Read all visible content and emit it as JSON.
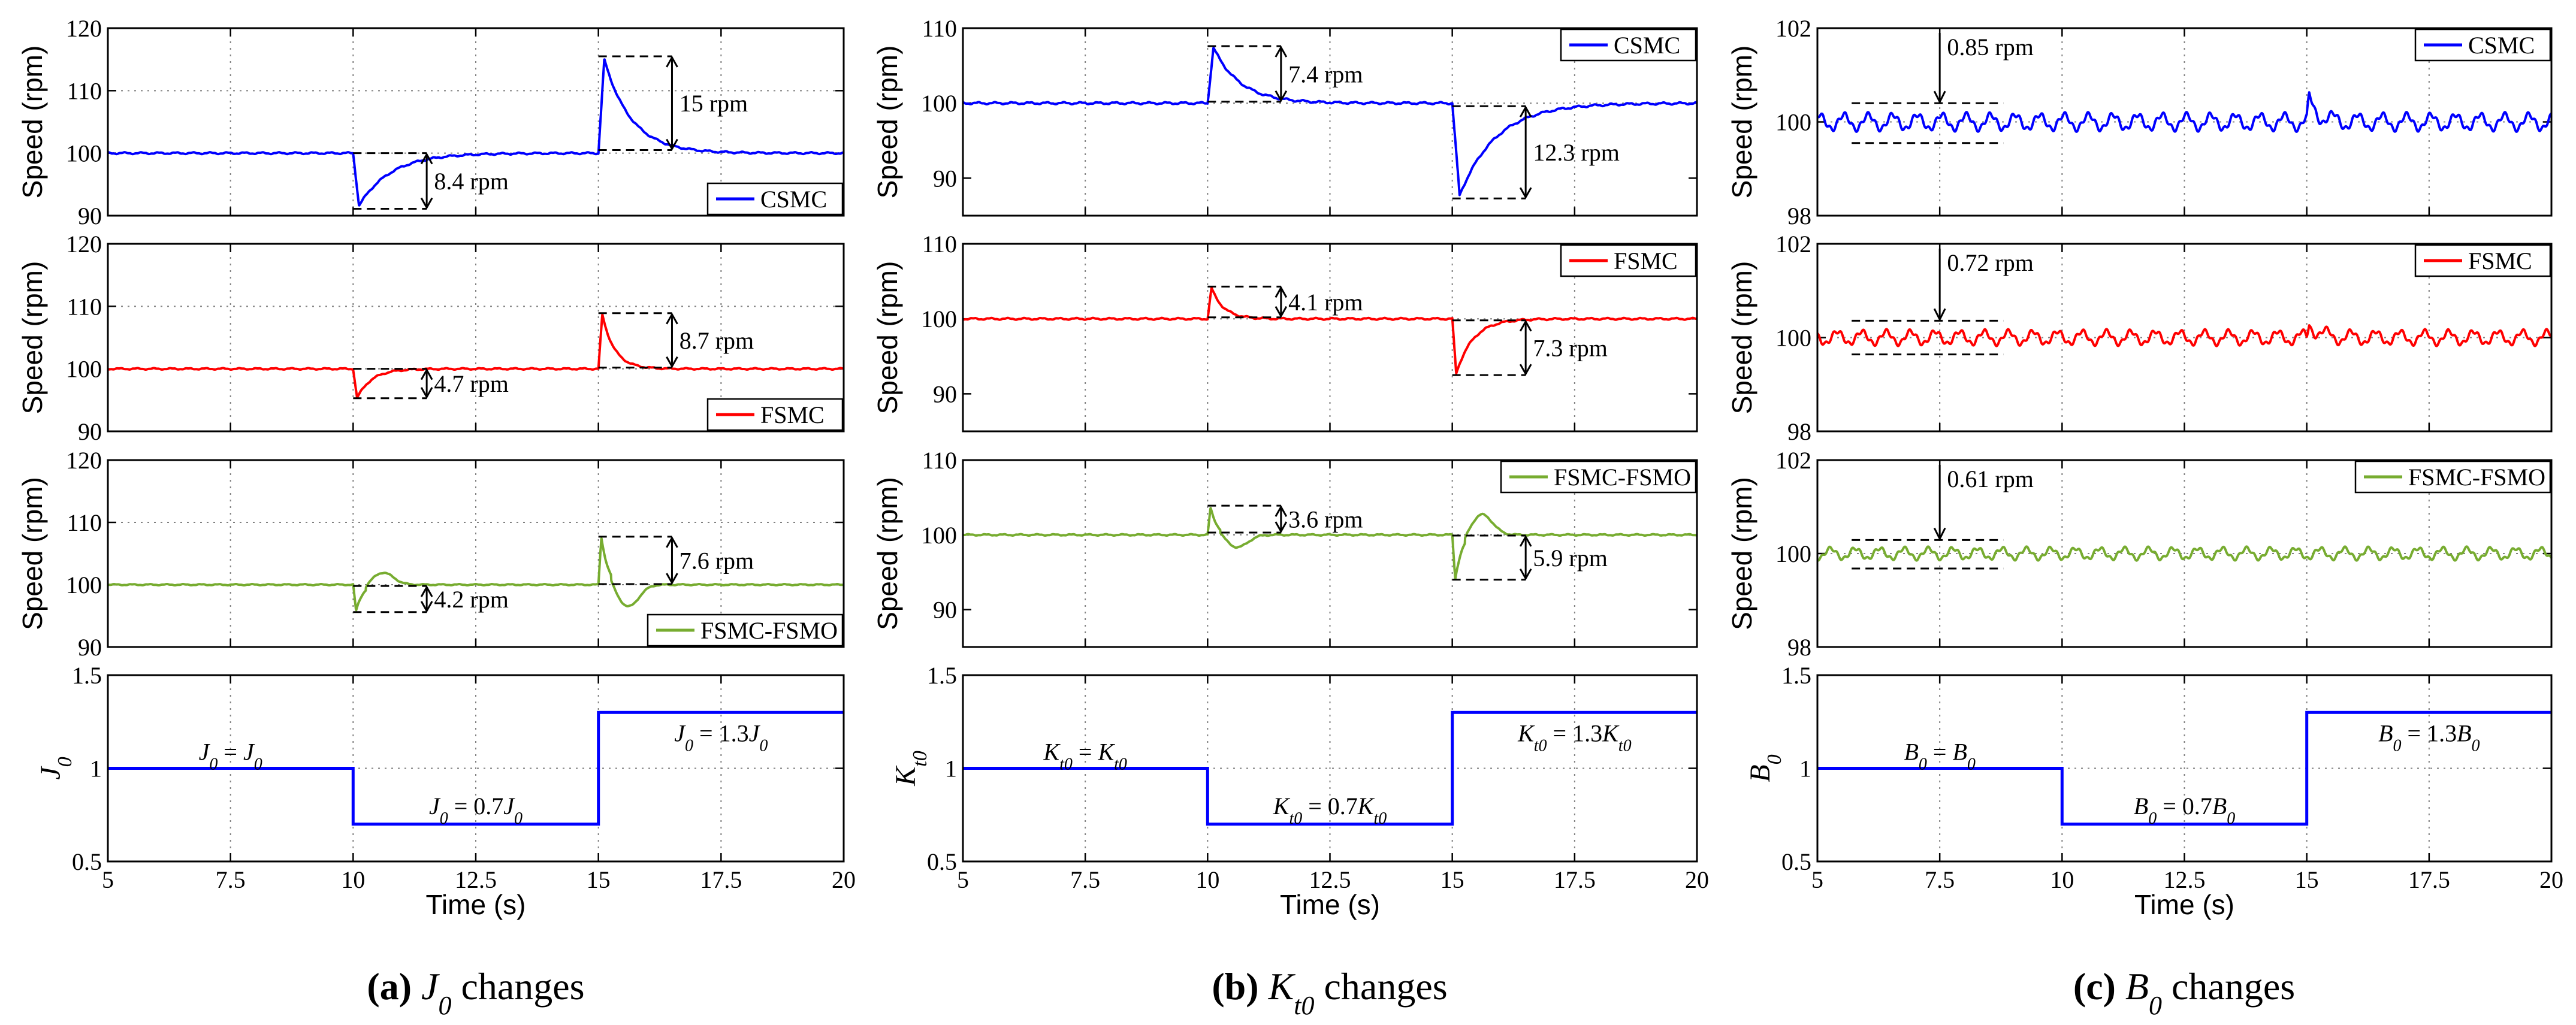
{
  "figure": {
    "captions": [
      {
        "letter": "(a)",
        "symbol": "J0",
        "suffix": " changes"
      },
      {
        "letter": "(b)",
        "symbol": "Kt0",
        "suffix": " changes"
      },
      {
        "letter": "(c)",
        "symbol": "B0",
        "suffix": " changes"
      }
    ],
    "colors": {
      "CSMC": "#0000ff",
      "FSMC": "#ff0000",
      "FSMC-FSMO": "#77ac30"
    }
  },
  "chart_data": [
    {
      "type": "line",
      "column": "a",
      "row": 0,
      "controller": "CSMC",
      "legend_pos": "bottom-right",
      "ylabel": "Speed  (rpm)",
      "xlim": [
        5,
        20
      ],
      "ylim": [
        90,
        120
      ],
      "yticks": [
        90,
        100,
        110,
        120
      ],
      "xticks": [
        5,
        7.5,
        10,
        12.5,
        15,
        17.5,
        20
      ],
      "xticklabels_shown": false,
      "grid": true,
      "series": [
        {
          "name": "CSMC",
          "baseline": 100,
          "ripple": 0.3,
          "events": [
            {
              "t": 10,
              "peak": -8.4,
              "tau": 0.65,
              "ramp": 0.12
            },
            {
              "t": 15,
              "peak": 15,
              "tau": 0.55,
              "ramp": 0.12
            }
          ]
        }
      ],
      "annotations": [
        {
          "text": "8.4 rpm",
          "x_line": [
            10,
            11.5
          ],
          "y_low": 91.1,
          "y_high": 100,
          "x_arrow": 11.5,
          "label_at": 11.65
        },
        {
          "text": "15 rpm",
          "x_line": [
            15,
            16.5
          ],
          "y_low": 100.5,
          "y_high": 115.5,
          "x_arrow": 16.5,
          "label_at": 16.65
        }
      ]
    },
    {
      "type": "line",
      "column": "a",
      "row": 1,
      "controller": "FSMC",
      "legend_pos": "bottom-right",
      "ylabel": "Speed  (rpm)",
      "xlim": [
        5,
        20
      ],
      "ylim": [
        90,
        120
      ],
      "yticks": [
        90,
        100,
        110,
        120
      ],
      "xticks": [
        5,
        7.5,
        10,
        12.5,
        15,
        17.5,
        20
      ],
      "xticklabels_shown": false,
      "grid": true,
      "series": [
        {
          "name": "FSMC",
          "baseline": 100,
          "ripple": 0.25,
          "events": [
            {
              "t": 10,
              "peak": -4.7,
              "tau": 0.3,
              "ramp": 0.08
            },
            {
              "t": 15,
              "peak": 8.7,
              "tau": 0.25,
              "ramp": 0.08
            }
          ]
        }
      ],
      "annotations": [
        {
          "text": "4.7 rpm",
          "x_line": [
            10,
            11.5
          ],
          "y_low": 95.3,
          "y_high": 100,
          "x_arrow": 11.5,
          "label_at": 11.65
        },
        {
          "text": "8.7 rpm",
          "x_line": [
            15,
            16.5
          ],
          "y_low": 100.2,
          "y_high": 108.9,
          "x_arrow": 16.5,
          "label_at": 16.65
        }
      ]
    },
    {
      "type": "line",
      "column": "a",
      "row": 2,
      "controller": "FSMC-FSMO",
      "legend_pos": "bottom-right",
      "ylabel": "Speed  (rpm)",
      "xlim": [
        5,
        20
      ],
      "ylim": [
        90,
        120
      ],
      "yticks": [
        90,
        100,
        110,
        120
      ],
      "xticks": [
        5,
        7.5,
        10,
        12.5,
        15,
        17.5,
        20
      ],
      "xticklabels_shown": false,
      "grid": true,
      "series": [
        {
          "name": "FSMC-FSMO",
          "baseline": 100,
          "ripple": 0.2,
          "events": [
            {
              "t": 10,
              "peak": -4.2,
              "tau": 0.15,
              "ramp": 0.06,
              "rebound": 0.45
            },
            {
              "t": 15,
              "peak": 7.6,
              "tau": 0.15,
              "ramp": 0.06,
              "rebound": 0.45
            }
          ]
        }
      ],
      "annotations": [
        {
          "text": "4.2 rpm",
          "x_line": [
            10,
            11.5
          ],
          "y_low": 95.6,
          "y_high": 99.8,
          "x_arrow": 11.5,
          "label_at": 11.65
        },
        {
          "text": "7.6 rpm",
          "x_line": [
            15,
            16.5
          ],
          "y_low": 100.1,
          "y_high": 107.7,
          "x_arrow": 16.5,
          "label_at": 16.65
        }
      ]
    },
    {
      "type": "line",
      "column": "a",
      "row": 3,
      "ylabel": "J0",
      "xlabel": "Time (s)",
      "xlim": [
        5,
        20
      ],
      "ylim": [
        0.5,
        1.5
      ],
      "yticks": [
        0.5,
        1,
        1.5
      ],
      "xticks": [
        5,
        7.5,
        10,
        12.5,
        15,
        17.5,
        20
      ],
      "xticklabels": [
        "5",
        "7.5",
        "10",
        "12.5",
        "15",
        "17.5",
        "20"
      ],
      "grid": true,
      "series": [
        {
          "name": "J0",
          "steps": [
            [
              5,
              1
            ],
            [
              10,
              1
            ],
            [
              10,
              0.7
            ],
            [
              15,
              0.7
            ],
            [
              15,
              1.3
            ],
            [
              20,
              1.3
            ]
          ]
        }
      ],
      "step_labels": [
        {
          "text": "J0 = J0",
          "x": 7.5,
          "y": 1.07
        },
        {
          "text": "J0 = 0.7J0",
          "x": 12.5,
          "y": 0.78
        },
        {
          "text": "J0 = 1.3J0",
          "x": 17.5,
          "y": 1.17
        }
      ]
    },
    {
      "type": "line",
      "column": "b",
      "row": 0,
      "controller": "CSMC",
      "legend_pos": "top-right",
      "ylabel": "Speed  (rpm)",
      "xlim": [
        5,
        20
      ],
      "ylim": [
        85,
        110
      ],
      "yticks": [
        90,
        100,
        110
      ],
      "xticks": [
        5,
        7.5,
        10,
        12.5,
        15,
        17.5,
        20
      ],
      "xticklabels_shown": false,
      "grid": true,
      "series": [
        {
          "name": "CSMC",
          "baseline": 100,
          "ripple": 0.3,
          "events": [
            {
              "t": 10,
              "peak": 7.4,
              "tau": 0.55,
              "ramp": 0.12
            },
            {
              "t": 15,
              "peak": -12.3,
              "tau": 0.75,
              "ramp": 0.15
            }
          ]
        }
      ],
      "annotations": [
        {
          "text": "7.4 rpm",
          "x_line": [
            10,
            11.5
          ],
          "y_low": 100.2,
          "y_high": 107.6,
          "x_arrow": 11.5,
          "label_at": 11.65
        },
        {
          "text": "12.3 rpm",
          "x_line": [
            15,
            16.5
          ],
          "y_low": 87.3,
          "y_high": 99.6,
          "x_arrow": 16.5,
          "label_at": 16.65
        }
      ]
    },
    {
      "type": "line",
      "column": "b",
      "row": 1,
      "controller": "FSMC",
      "legend_pos": "top-right",
      "ylabel": "Speed  (rpm)",
      "xlim": [
        5,
        20
      ],
      "ylim": [
        85,
        110
      ],
      "yticks": [
        90,
        100,
        110
      ],
      "xticks": [
        5,
        7.5,
        10,
        12.5,
        15,
        17.5,
        20
      ],
      "xticklabels_shown": false,
      "grid": true,
      "series": [
        {
          "name": "FSMC",
          "baseline": 100,
          "ripple": 0.25,
          "events": [
            {
              "t": 10,
              "peak": 4.1,
              "tau": 0.25,
              "ramp": 0.08
            },
            {
              "t": 15,
              "peak": -7.3,
              "tau": 0.35,
              "ramp": 0.08
            }
          ]
        }
      ],
      "annotations": [
        {
          "text": "4.1 rpm",
          "x_line": [
            10,
            11.5
          ],
          "y_low": 100.2,
          "y_high": 104.3,
          "x_arrow": 11.5,
          "label_at": 11.65
        },
        {
          "text": "7.3 rpm",
          "x_line": [
            15,
            16.5
          ],
          "y_low": 92.5,
          "y_high": 99.8,
          "x_arrow": 16.5,
          "label_at": 16.65
        }
      ]
    },
    {
      "type": "line",
      "column": "b",
      "row": 2,
      "controller": "FSMC-FSMO",
      "legend_pos": "top-right",
      "ylabel": "Speed  (rpm)",
      "xlim": [
        5,
        20
      ],
      "ylim": [
        85,
        110
      ],
      "yticks": [
        90,
        100,
        110
      ],
      "xticks": [
        5,
        7.5,
        10,
        12.5,
        15,
        17.5,
        20
      ],
      "xticklabels_shown": false,
      "grid": true,
      "series": [
        {
          "name": "FSMC-FSMO",
          "baseline": 100,
          "ripple": 0.2,
          "events": [
            {
              "t": 10,
              "peak": 3.6,
              "tau": 0.15,
              "ramp": 0.06,
              "rebound": 0.45
            },
            {
              "t": 15,
              "peak": -5.9,
              "tau": 0.15,
              "ramp": 0.06,
              "rebound": 0.45
            }
          ]
        }
      ],
      "annotations": [
        {
          "text": "3.6 rpm",
          "x_line": [
            10,
            11.5
          ],
          "y_low": 100.3,
          "y_high": 103.9,
          "x_arrow": 11.5,
          "label_at": 11.65
        },
        {
          "text": "5.9 rpm",
          "x_line": [
            15,
            16.5
          ],
          "y_low": 94,
          "y_high": 99.9,
          "x_arrow": 16.5,
          "label_at": 16.65
        }
      ]
    },
    {
      "type": "line",
      "column": "b",
      "row": 3,
      "ylabel": "Kt0",
      "xlabel": "Time (s)",
      "xlim": [
        5,
        20
      ],
      "ylim": [
        0.5,
        1.5
      ],
      "yticks": [
        0.5,
        1,
        1.5
      ],
      "xticks": [
        5,
        7.5,
        10,
        12.5,
        15,
        17.5,
        20
      ],
      "xticklabels": [
        "5",
        "7.5",
        "10",
        "12.5",
        "15",
        "17.5",
        "20"
      ],
      "grid": true,
      "series": [
        {
          "name": "Kt0",
          "steps": [
            [
              5,
              1
            ],
            [
              10,
              1
            ],
            [
              10,
              0.7
            ],
            [
              15,
              0.7
            ],
            [
              15,
              1.3
            ],
            [
              20,
              1.3
            ]
          ]
        }
      ],
      "step_labels": [
        {
          "text": "Kt0 = Kt0",
          "x": 7.5,
          "y": 1.07
        },
        {
          "text": "Kt0 = 0.7Kt0",
          "x": 12.5,
          "y": 0.78
        },
        {
          "text": "Kt0 = 1.3Kt0",
          "x": 17.5,
          "y": 1.17
        }
      ]
    },
    {
      "type": "line",
      "column": "c",
      "row": 0,
      "controller": "CSMC",
      "legend_pos": "top-right",
      "ylabel": "Speed  (rpm)",
      "xlim": [
        5,
        20
      ],
      "ylim": [
        98,
        102
      ],
      "yticks": [
        98,
        100,
        102
      ],
      "xticks": [
        5,
        7.5,
        10,
        12.5,
        15,
        17.5,
        20
      ],
      "xticklabels_shown": false,
      "grid": true,
      "series": [
        {
          "name": "CSMC",
          "baseline": 100,
          "ripple": 0.42,
          "period": 0.5,
          "events": [
            {
              "t": 15,
              "peak": 0.45,
              "tau": 0.2,
              "ramp": 0.05
            }
          ]
        }
      ],
      "annotations": [
        {
          "text": "0.85 rpm",
          "x_line": [
            5.7,
            8.8
          ],
          "y_low": 99.55,
          "y_high": 100.4,
          "x_arrow": 7.5,
          "label_at": 7.65,
          "arrow_style": "down"
        }
      ]
    },
    {
      "type": "line",
      "column": "c",
      "row": 1,
      "controller": "FSMC",
      "legend_pos": "top-right",
      "ylabel": "Speed  (rpm)",
      "xlim": [
        5,
        20
      ],
      "ylim": [
        98,
        102
      ],
      "yticks": [
        98,
        100,
        102
      ],
      "xticks": [
        5,
        7.5,
        10,
        12.5,
        15,
        17.5,
        20
      ],
      "xticklabels_shown": false,
      "grid": true,
      "series": [
        {
          "name": "FSMC",
          "baseline": 100,
          "ripple": 0.36,
          "period": 0.5,
          "events": [
            {
              "t": 15,
              "peak": 0.3,
              "tau": 0.2,
              "ramp": 0.05
            }
          ]
        }
      ],
      "annotations": [
        {
          "text": "0.72 rpm",
          "x_line": [
            5.7,
            8.8
          ],
          "y_low": 99.64,
          "y_high": 100.36,
          "x_arrow": 7.5,
          "label_at": 7.65,
          "arrow_style": "down"
        }
      ]
    },
    {
      "type": "line",
      "column": "c",
      "row": 2,
      "controller": "FSMC-FSMO",
      "legend_pos": "top-right",
      "ylabel": "Speed  (rpm)",
      "xlim": [
        5,
        20
      ],
      "ylim": [
        98,
        102
      ],
      "yticks": [
        98,
        100,
        102
      ],
      "xticks": [
        5,
        7.5,
        10,
        12.5,
        15,
        17.5,
        20
      ],
      "xticklabels_shown": false,
      "grid": true,
      "series": [
        {
          "name": "FSMC-FSMO",
          "baseline": 100,
          "ripple": 0.3,
          "period": 0.5,
          "events": []
        }
      ],
      "annotations": [
        {
          "text": "0.61 rpm",
          "x_line": [
            5.7,
            8.8
          ],
          "y_low": 99.68,
          "y_high": 100.29,
          "x_arrow": 7.5,
          "label_at": 7.65,
          "arrow_style": "down"
        }
      ]
    },
    {
      "type": "line",
      "column": "c",
      "row": 3,
      "ylabel": "B0",
      "xlabel": "Time (s)",
      "xlim": [
        5,
        20
      ],
      "ylim": [
        0.5,
        1.5
      ],
      "yticks": [
        0.5,
        1,
        1.5
      ],
      "xticks": [
        5,
        7.5,
        10,
        12.5,
        15,
        17.5,
        20
      ],
      "xticklabels": [
        "5",
        "7.5",
        "10",
        "12.5",
        "15",
        "17.5",
        "20"
      ],
      "grid": true,
      "series": [
        {
          "name": "B0",
          "steps": [
            [
              5,
              1
            ],
            [
              10,
              1
            ],
            [
              10,
              0.7
            ],
            [
              15,
              0.7
            ],
            [
              15,
              1.3
            ],
            [
              20,
              1.3
            ]
          ]
        }
      ],
      "step_labels": [
        {
          "text": "B0 = B0",
          "x": 7.5,
          "y": 1.07
        },
        {
          "text": "B0 = 0.7B0",
          "x": 12.5,
          "y": 0.78
        },
        {
          "text": "B0 = 1.3B0",
          "x": 17.5,
          "y": 1.17
        }
      ]
    }
  ]
}
